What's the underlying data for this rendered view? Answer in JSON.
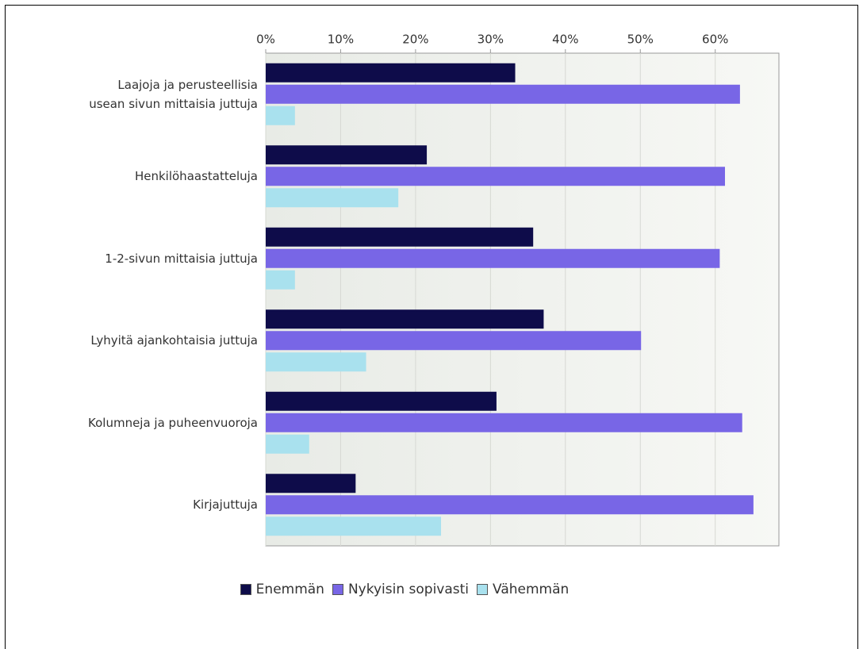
{
  "chart_data": {
    "type": "bar",
    "orientation": "horizontal",
    "categories": [
      "Laajoja ja perusteellisia\nusean sivun mittaisia juttuja",
      "Henkilöhaastatteluja",
      "1-2-sivun mittaisia juttuja",
      "Lyhyitä ajankohtaisia juttuja",
      "Kolumneja ja puheenvuoroja",
      "Kirjajuttuja"
    ],
    "series": [
      {
        "name": "Enemmän",
        "color": "#0e0c4a",
        "values": [
          33.3,
          21.5,
          35.7,
          37.1,
          30.8,
          12.0
        ]
      },
      {
        "name": "Nykyisin sopivasti",
        "color": "#7866e6",
        "values": [
          63.3,
          61.3,
          60.6,
          50.1,
          63.6,
          65.1
        ]
      },
      {
        "name": "Vähemmän",
        "color": "#a9e1ee",
        "values": [
          3.9,
          17.7,
          3.9,
          13.4,
          5.8,
          23.4
        ]
      }
    ],
    "xlim": [
      0,
      68.5
    ],
    "xticks": [
      {
        "value": 0,
        "label": "0%"
      },
      {
        "value": 10,
        "label": "10%"
      },
      {
        "value": 20,
        "label": "20%"
      },
      {
        "value": 30,
        "label": "30%"
      },
      {
        "value": 40,
        "label": "40%"
      },
      {
        "value": 50,
        "label": "50%"
      },
      {
        "value": 60,
        "label": "60%"
      }
    ],
    "grid": true,
    "legend": "bottom"
  }
}
